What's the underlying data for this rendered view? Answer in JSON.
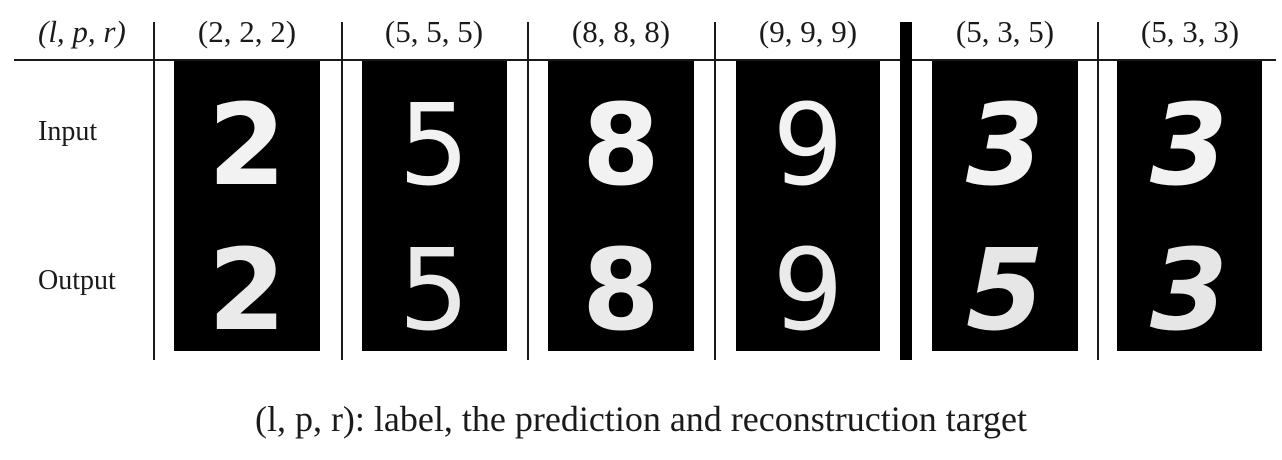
{
  "table": {
    "corner_header": "(l, p, r)",
    "columns": [
      {
        "header": "(2, 2, 2)",
        "input_digit": "2",
        "output_digit": "2"
      },
      {
        "header": "(5, 5, 5)",
        "input_digit": "5",
        "output_digit": "5"
      },
      {
        "header": "(8, 8, 8)",
        "input_digit": "8",
        "output_digit": "8"
      },
      {
        "header": "(9, 9, 9)",
        "input_digit": "9",
        "output_digit": "9"
      },
      {
        "header": "(5, 3, 5)",
        "input_digit": "3",
        "output_digit": "5"
      },
      {
        "header": "(5, 3, 3)",
        "input_digit": "3",
        "output_digit": "3"
      }
    ],
    "row_labels": {
      "input": "Input",
      "output": "Output"
    }
  },
  "caption": "(l, p, r): label, the prediction and reconstruction target",
  "colors": {
    "panel_bg": "#000000",
    "digit": "#f2f2f2",
    "rule": "#1a1a1a"
  }
}
